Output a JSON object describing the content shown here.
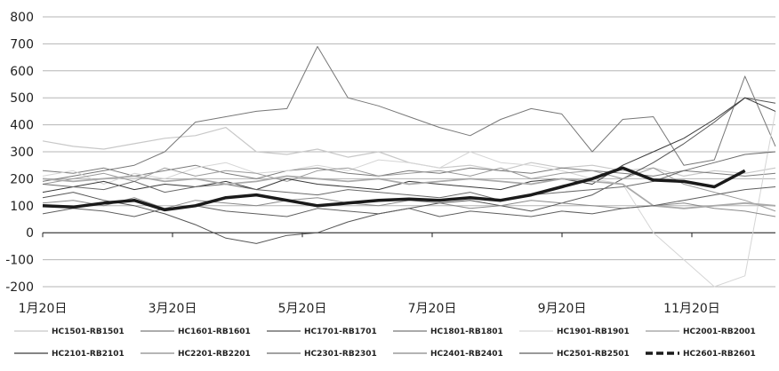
{
  "chart_data": {
    "type": "line",
    "ylim": [
      -200,
      800
    ],
    "yticks": [
      "800",
      "700",
      "600",
      "500",
      "400",
      "300",
      "200",
      "100",
      "0",
      "-100",
      "-200"
    ],
    "xticks": [
      "1月20日",
      "3月20日",
      "5月20日",
      "7月20日",
      "9月20日",
      "11月20日"
    ],
    "grid": true,
    "legend_position": "bottom",
    "series": [
      {
        "name": "HC1501-RB1501",
        "color": "#c8c8c8",
        "dash": false,
        "width": 1.2,
        "values": [
          340,
          320,
          310,
          330,
          350,
          360,
          390,
          300,
          290,
          310,
          280,
          300,
          260,
          240,
          250,
          230,
          260,
          240,
          250,
          230,
          240,
          210,
          230,
          220,
          240
        ]
      },
      {
        "name": "HC1601-RB1601",
        "color": "#7a7a7a",
        "dash": false,
        "width": 1.0,
        "values": [
          230,
          220,
          240,
          210,
          230,
          250,
          220,
          200,
          230,
          240,
          220,
          210,
          230,
          220,
          240,
          230,
          220,
          240,
          230,
          220,
          210,
          230,
          220,
          210,
          220
        ]
      },
      {
        "name": "HC1701-RB1701",
        "color": "#555555",
        "dash": false,
        "width": 1.0,
        "values": [
          130,
          150,
          120,
          100,
          70,
          30,
          -20,
          -40,
          -10,
          0,
          40,
          70,
          90,
          110,
          120,
          100,
          80,
          110,
          140,
          200,
          260,
          330,
          410,
          500,
          480
        ]
      },
      {
        "name": "HC1801-RB1801",
        "color": "#777777",
        "dash": false,
        "width": 1.0,
        "values": [
          190,
          210,
          230,
          250,
          300,
          410,
          430,
          450,
          460,
          690,
          500,
          470,
          430,
          390,
          360,
          420,
          460,
          440,
          300,
          420,
          430,
          250,
          270,
          580,
          320
        ]
      },
      {
        "name": "HC1901-RB1901",
        "color": "#d5d5d5",
        "dash": false,
        "width": 1.0,
        "values": [
          210,
          230,
          180,
          220,
          200,
          240,
          260,
          220,
          230,
          250,
          230,
          270,
          260,
          240,
          300,
          260,
          250,
          230,
          200,
          180,
          0,
          -100,
          -200,
          -160,
          450
        ]
      },
      {
        "name": "HC2001-RB2001",
        "color": "#9a9a9a",
        "dash": false,
        "width": 1.0,
        "values": [
          180,
          200,
          220,
          190,
          240,
          210,
          230,
          220,
          190,
          230,
          240,
          210,
          220,
          230,
          210,
          240,
          200,
          220,
          230,
          200,
          240,
          180,
          150,
          120,
          80
        ]
      },
      {
        "name": "HC2101-RB2101",
        "color": "#3a3a3a",
        "dash": false,
        "width": 1.0,
        "values": [
          150,
          170,
          190,
          160,
          180,
          170,
          190,
          160,
          200,
          180,
          170,
          160,
          190,
          180,
          170,
          160,
          190,
          200,
          180,
          250,
          300,
          350,
          420,
          500,
          450
        ]
      },
      {
        "name": "HC2201-RB2201",
        "color": "#8a8a8a",
        "dash": false,
        "width": 1.0,
        "values": [
          110,
          120,
          100,
          130,
          90,
          120,
          110,
          100,
          120,
          130,
          110,
          100,
          120,
          110,
          90,
          100,
          120,
          110,
          100,
          90,
          100,
          110,
          90,
          80,
          60
        ]
      },
      {
        "name": "HC2301-RB2301",
        "color": "#6a6a6a",
        "dash": false,
        "width": 1.0,
        "values": [
          180,
          170,
          160,
          190,
          150,
          170,
          180,
          160,
          150,
          140,
          160,
          150,
          140,
          130,
          150,
          120,
          140,
          150,
          160,
          170,
          190,
          230,
          260,
          290,
          300
        ]
      },
      {
        "name": "HC2401-RB2401",
        "color": "#aaaaaa",
        "dash": false,
        "width": 1.8,
        "values": [
          200,
          190,
          200,
          210,
          190,
          200,
          180,
          190,
          210,
          200,
          190,
          200,
          180,
          190,
          200,
          190,
          180,
          200,
          190,
          180,
          100,
          90,
          100,
          110,
          100
        ]
      },
      {
        "name": "HC2501-RB2501",
        "color": "#5e5e5e",
        "dash": false,
        "width": 1.0,
        "values": [
          70,
          90,
          80,
          60,
          90,
          100,
          80,
          70,
          60,
          90,
          80,
          70,
          90,
          60,
          80,
          70,
          60,
          80,
          70,
          90,
          100,
          120,
          140,
          160,
          170
        ]
      },
      {
        "name": "HC2601-RB2601",
        "color": "#1a1a1a",
        "dash": true,
        "width": 3.5,
        "values": [
          100,
          95,
          110,
          120,
          85,
          100,
          130,
          140,
          120,
          100,
          110,
          120,
          125,
          120,
          130,
          120,
          140,
          170,
          200,
          240,
          195,
          190,
          170,
          230,
          null
        ]
      }
    ]
  }
}
